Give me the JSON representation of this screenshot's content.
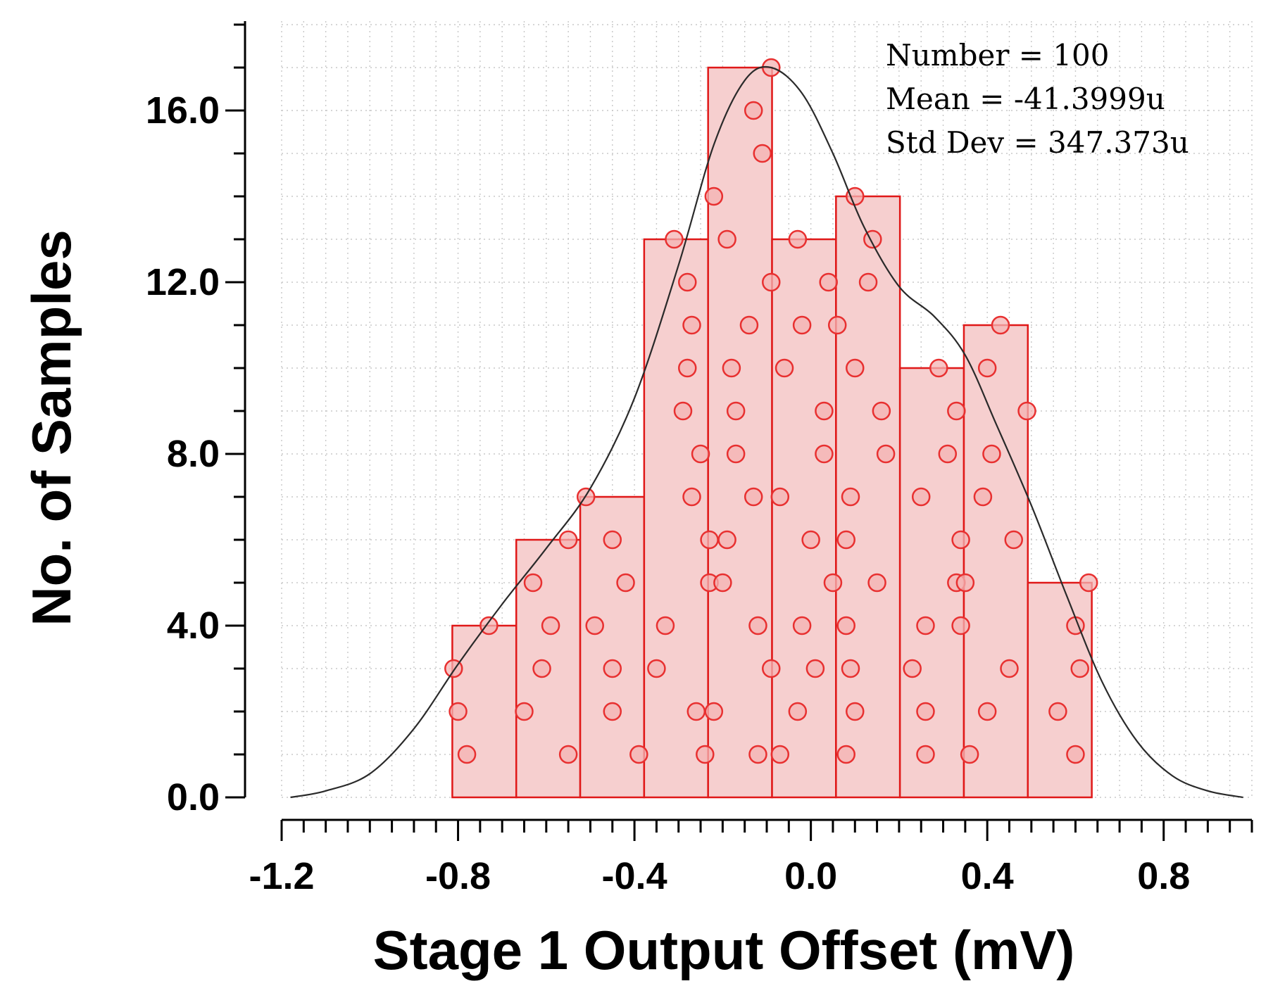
{
  "chart_data": {
    "type": "histogram",
    "title": "",
    "xlabel": "Stage 1 Output Offset (mV)",
    "ylabel": "No. of Samples",
    "xlim": [
      -1.2,
      1.0
    ],
    "ylim": [
      0,
      18
    ],
    "x_ticks": [
      -1.2,
      -0.8,
      -0.4,
      0.0,
      0.4,
      0.8
    ],
    "x_tick_labels": [
      "-1.2",
      "-0.8",
      "-0.4",
      "0.0",
      "0.4",
      "0.8"
    ],
    "y_ticks": [
      0,
      4,
      8,
      12,
      16
    ],
    "y_tick_labels": [
      "0.0",
      "4.0",
      "8.0",
      "12.0",
      "16.0"
    ],
    "grid": true,
    "bins": [
      {
        "x0": -0.813,
        "x1": -0.668,
        "count": 4
      },
      {
        "x0": -0.668,
        "x1": -0.523,
        "count": 6
      },
      {
        "x0": -0.523,
        "x1": -0.378,
        "count": 7
      },
      {
        "x0": -0.378,
        "x1": -0.233,
        "count": 13
      },
      {
        "x0": -0.233,
        "x1": -0.088,
        "count": 17
      },
      {
        "x0": -0.088,
        "x1": 0.057,
        "count": 13
      },
      {
        "x0": 0.057,
        "x1": 0.202,
        "count": 14
      },
      {
        "x0": 0.202,
        "x1": 0.347,
        "count": 10
      },
      {
        "x0": 0.347,
        "x1": 0.492,
        "count": 11
      },
      {
        "x0": 0.492,
        "x1": 0.637,
        "count": 5
      }
    ],
    "samples": [
      {
        "x": -0.81,
        "y": 3
      },
      {
        "x": -0.8,
        "y": 2
      },
      {
        "x": -0.78,
        "y": 1
      },
      {
        "x": -0.73,
        "y": 4
      },
      {
        "x": -0.65,
        "y": 2
      },
      {
        "x": -0.63,
        "y": 5
      },
      {
        "x": -0.61,
        "y": 3
      },
      {
        "x": -0.59,
        "y": 4
      },
      {
        "x": -0.55,
        "y": 1
      },
      {
        "x": -0.55,
        "y": 6
      },
      {
        "x": -0.51,
        "y": 7
      },
      {
        "x": -0.49,
        "y": 4
      },
      {
        "x": -0.45,
        "y": 2
      },
      {
        "x": -0.45,
        "y": 3
      },
      {
        "x": -0.45,
        "y": 6
      },
      {
        "x": -0.42,
        "y": 5
      },
      {
        "x": -0.39,
        "y": 1
      },
      {
        "x": -0.35,
        "y": 3
      },
      {
        "x": -0.33,
        "y": 4
      },
      {
        "x": -0.31,
        "y": 13
      },
      {
        "x": -0.29,
        "y": 9
      },
      {
        "x": -0.28,
        "y": 12
      },
      {
        "x": -0.28,
        "y": 10
      },
      {
        "x": -0.27,
        "y": 11
      },
      {
        "x": -0.27,
        "y": 7
      },
      {
        "x": -0.26,
        "y": 2
      },
      {
        "x": -0.25,
        "y": 8
      },
      {
        "x": -0.24,
        "y": 1
      },
      {
        "x": -0.23,
        "y": 5
      },
      {
        "x": -0.23,
        "y": 6
      },
      {
        "x": -0.22,
        "y": 2
      },
      {
        "x": -0.22,
        "y": 14
      },
      {
        "x": -0.2,
        "y": 5
      },
      {
        "x": -0.19,
        "y": 13
      },
      {
        "x": -0.19,
        "y": 6
      },
      {
        "x": -0.18,
        "y": 10
      },
      {
        "x": -0.17,
        "y": 9
      },
      {
        "x": -0.17,
        "y": 8
      },
      {
        "x": -0.13,
        "y": 16
      },
      {
        "x": -0.14,
        "y": 11
      },
      {
        "x": -0.13,
        "y": 7
      },
      {
        "x": -0.12,
        "y": 4
      },
      {
        "x": -0.12,
        "y": 1
      },
      {
        "x": -0.11,
        "y": 15
      },
      {
        "x": -0.09,
        "y": 17
      },
      {
        "x": -0.09,
        "y": 12
      },
      {
        "x": -0.09,
        "y": 3
      },
      {
        "x": -0.07,
        "y": 1
      },
      {
        "x": -0.07,
        "y": 7
      },
      {
        "x": -0.06,
        "y": 10
      },
      {
        "x": -0.03,
        "y": 13
      },
      {
        "x": -0.03,
        "y": 2
      },
      {
        "x": -0.02,
        "y": 4
      },
      {
        "x": -0.02,
        "y": 11
      },
      {
        "x": 0.0,
        "y": 6
      },
      {
        "x": 0.01,
        "y": 3
      },
      {
        "x": 0.03,
        "y": 9
      },
      {
        "x": 0.03,
        "y": 8
      },
      {
        "x": 0.04,
        "y": 12
      },
      {
        "x": 0.05,
        "y": 5
      },
      {
        "x": 0.06,
        "y": 11
      },
      {
        "x": 0.08,
        "y": 6
      },
      {
        "x": 0.08,
        "y": 1
      },
      {
        "x": 0.08,
        "y": 4
      },
      {
        "x": 0.09,
        "y": 3
      },
      {
        "x": 0.09,
        "y": 7
      },
      {
        "x": 0.1,
        "y": 2
      },
      {
        "x": 0.1,
        "y": 10
      },
      {
        "x": 0.1,
        "y": 14
      },
      {
        "x": 0.13,
        "y": 12
      },
      {
        "x": 0.14,
        "y": 13
      },
      {
        "x": 0.15,
        "y": 5
      },
      {
        "x": 0.16,
        "y": 9
      },
      {
        "x": 0.17,
        "y": 8
      },
      {
        "x": 0.23,
        "y": 3
      },
      {
        "x": 0.25,
        "y": 7
      },
      {
        "x": 0.26,
        "y": 4
      },
      {
        "x": 0.26,
        "y": 2
      },
      {
        "x": 0.26,
        "y": 1
      },
      {
        "x": 0.29,
        "y": 10
      },
      {
        "x": 0.31,
        "y": 8
      },
      {
        "x": 0.33,
        "y": 5
      },
      {
        "x": 0.33,
        "y": 9
      },
      {
        "x": 0.34,
        "y": 6
      },
      {
        "x": 0.34,
        "y": 4
      },
      {
        "x": 0.35,
        "y": 5
      },
      {
        "x": 0.36,
        "y": 1
      },
      {
        "x": 0.39,
        "y": 7
      },
      {
        "x": 0.4,
        "y": 10
      },
      {
        "x": 0.4,
        "y": 2
      },
      {
        "x": 0.41,
        "y": 8
      },
      {
        "x": 0.43,
        "y": 11
      },
      {
        "x": 0.45,
        "y": 3
      },
      {
        "x": 0.46,
        "y": 6
      },
      {
        "x": 0.49,
        "y": 9
      },
      {
        "x": 0.56,
        "y": 2
      },
      {
        "x": 0.6,
        "y": 4
      },
      {
        "x": 0.6,
        "y": 1
      },
      {
        "x": 0.61,
        "y": 3
      },
      {
        "x": 0.63,
        "y": 5
      }
    ],
    "fit_curve": [
      {
        "x": -1.18,
        "y": 0.0
      },
      {
        "x": -1.1,
        "y": 0.15
      },
      {
        "x": -1.0,
        "y": 0.55
      },
      {
        "x": -0.9,
        "y": 1.6
      },
      {
        "x": -0.8,
        "y": 3.1
      },
      {
        "x": -0.7,
        "y": 4.5
      },
      {
        "x": -0.6,
        "y": 5.8
      },
      {
        "x": -0.5,
        "y": 7.2
      },
      {
        "x": -0.4,
        "y": 9.3
      },
      {
        "x": -0.3,
        "y": 12.4
      },
      {
        "x": -0.22,
        "y": 15.2
      },
      {
        "x": -0.15,
        "y": 16.7
      },
      {
        "x": -0.09,
        "y": 17.0
      },
      {
        "x": -0.02,
        "y": 16.4
      },
      {
        "x": 0.05,
        "y": 15.0
      },
      {
        "x": 0.12,
        "y": 13.3
      },
      {
        "x": 0.2,
        "y": 11.9
      },
      {
        "x": 0.28,
        "y": 11.2
      },
      {
        "x": 0.35,
        "y": 10.3
      },
      {
        "x": 0.42,
        "y": 8.7
      },
      {
        "x": 0.5,
        "y": 6.8
      },
      {
        "x": 0.58,
        "y": 4.7
      },
      {
        "x": 0.66,
        "y": 2.7
      },
      {
        "x": 0.74,
        "y": 1.3
      },
      {
        "x": 0.82,
        "y": 0.5
      },
      {
        "x": 0.9,
        "y": 0.15
      },
      {
        "x": 0.98,
        "y": 0.0
      }
    ],
    "annotations": [
      "Number = 100",
      "Mean = -41.3999u",
      "Std Dev = 347.373u"
    ],
    "colors": {
      "bar_fill": "#f6cfcf",
      "bar_stroke": "#e01818",
      "marker_stroke": "#e83030",
      "marker_fill": "#f4b3b3",
      "curve": "#2a2a2a",
      "grid": "#c8c8c8",
      "axis": "#000000"
    }
  }
}
